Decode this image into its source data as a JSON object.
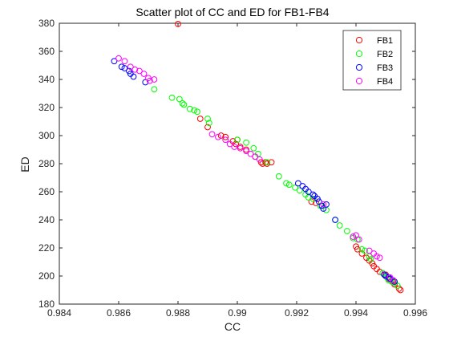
{
  "chart_data": {
    "type": "scatter",
    "title": "Scatter plot of CC and ED for FB1-FB4",
    "xlabel": "CC",
    "ylabel": "ED",
    "xlim": [
      0.984,
      0.996
    ],
    "ylim": [
      180,
      380
    ],
    "xticks": [
      0.984,
      0.986,
      0.988,
      0.99,
      0.992,
      0.994,
      0.996
    ],
    "xtick_labels": [
      "0.984",
      "0.986",
      "0.988",
      "0.99",
      "0.992",
      "0.994",
      "0.996"
    ],
    "yticks": [
      180,
      200,
      220,
      240,
      260,
      280,
      300,
      320,
      340,
      360,
      380
    ],
    "ytick_labels": [
      "180",
      "200",
      "220",
      "240",
      "260",
      "280",
      "300",
      "320",
      "340",
      "360",
      "380"
    ],
    "grid": false,
    "legend_position": "top-right",
    "series": [
      {
        "name": "FB1",
        "color": "#ff0000",
        "points": [
          [
            0.988,
            379.5
          ],
          [
            0.98875,
            312
          ],
          [
            0.989,
            306
          ],
          [
            0.98945,
            300
          ],
          [
            0.9896,
            299
          ],
          [
            0.98985,
            296
          ],
          [
            0.98995,
            294
          ],
          [
            0.99,
            297
          ],
          [
            0.9901,
            292
          ],
          [
            0.9903,
            290
          ],
          [
            0.9906,
            285
          ],
          [
            0.9908,
            281
          ],
          [
            0.99085,
            280
          ],
          [
            0.99095,
            281
          ],
          [
            0.991,
            280
          ],
          [
            0.99115,
            281
          ],
          [
            0.9925,
            253
          ],
          [
            0.99265,
            252
          ],
          [
            0.994,
            221
          ],
          [
            0.99405,
            219
          ],
          [
            0.9942,
            216
          ],
          [
            0.99435,
            213
          ],
          [
            0.99445,
            211
          ],
          [
            0.99455,
            209
          ],
          [
            0.9946,
            207
          ],
          [
            0.9947,
            205
          ],
          [
            0.9948,
            203
          ],
          [
            0.995,
            201
          ],
          [
            0.9951,
            198
          ],
          [
            0.99525,
            196
          ],
          [
            0.9953,
            194
          ],
          [
            0.99545,
            191
          ],
          [
            0.9955,
            190
          ]
        ]
      },
      {
        "name": "FB2",
        "color": "#00ff00",
        "points": [
          [
            0.9872,
            333
          ],
          [
            0.9878,
            327
          ],
          [
            0.98805,
            326
          ],
          [
            0.98815,
            323
          ],
          [
            0.9882,
            322
          ],
          [
            0.9884,
            319
          ],
          [
            0.98855,
            318
          ],
          [
            0.98865,
            317
          ],
          [
            0.989,
            312
          ],
          [
            0.98905,
            309
          ],
          [
            0.99,
            297
          ],
          [
            0.9903,
            295
          ],
          [
            0.99055,
            291
          ],
          [
            0.9907,
            287
          ],
          [
            0.991,
            281
          ],
          [
            0.9914,
            271
          ],
          [
            0.99165,
            266
          ],
          [
            0.99175,
            265
          ],
          [
            0.99195,
            263
          ],
          [
            0.9921,
            261
          ],
          [
            0.9923,
            258
          ],
          [
            0.9924,
            256
          ],
          [
            0.99255,
            255
          ],
          [
            0.9928,
            250
          ],
          [
            0.993,
            247
          ],
          [
            0.9933,
            240
          ],
          [
            0.99345,
            236
          ],
          [
            0.9937,
            232
          ],
          [
            0.9939,
            227
          ],
          [
            0.99405,
            226
          ],
          [
            0.9942,
            219
          ],
          [
            0.9943,
            218
          ],
          [
            0.99445,
            214
          ],
          [
            0.9945,
            212
          ],
          [
            0.9949,
            202
          ],
          [
            0.99505,
            199
          ],
          [
            0.9951,
            197
          ],
          [
            0.9952,
            196
          ],
          [
            0.9953,
            195
          ],
          [
            0.9954,
            193
          ]
        ]
      },
      {
        "name": "FB3",
        "color": "#0000ff",
        "points": [
          [
            0.98585,
            353
          ],
          [
            0.9861,
            349
          ],
          [
            0.9862,
            348
          ],
          [
            0.98635,
            346
          ],
          [
            0.9864,
            344
          ],
          [
            0.9865,
            342
          ],
          [
            0.9869,
            338
          ],
          [
            0.99205,
            266
          ],
          [
            0.9922,
            264
          ],
          [
            0.9923,
            262
          ],
          [
            0.9924,
            260
          ],
          [
            0.99255,
            258
          ],
          [
            0.9926,
            257
          ],
          [
            0.9927,
            255
          ],
          [
            0.99275,
            253
          ],
          [
            0.99285,
            250
          ],
          [
            0.9929,
            248
          ],
          [
            0.993,
            251
          ],
          [
            0.9933,
            240
          ],
          [
            0.99495,
            201
          ],
          [
            0.995,
            200
          ],
          [
            0.9951,
            199
          ],
          [
            0.99515,
            198
          ],
          [
            0.99525,
            197
          ],
          [
            0.9953,
            196
          ]
        ]
      },
      {
        "name": "FB4",
        "color": "#ff00ff",
        "points": [
          [
            0.986,
            355
          ],
          [
            0.9862,
            353
          ],
          [
            0.9864,
            349
          ],
          [
            0.98655,
            347
          ],
          [
            0.9867,
            346
          ],
          [
            0.98685,
            344
          ],
          [
            0.987,
            341
          ],
          [
            0.98705,
            339
          ],
          [
            0.9872,
            340
          ],
          [
            0.98915,
            301
          ],
          [
            0.98935,
            299
          ],
          [
            0.9896,
            297
          ],
          [
            0.98975,
            294
          ],
          [
            0.9899,
            292
          ],
          [
            0.9901,
            291
          ],
          [
            0.9903,
            289
          ],
          [
            0.99045,
            287
          ],
          [
            0.9906,
            285
          ],
          [
            0.99075,
            283
          ],
          [
            0.9929,
            251
          ],
          [
            0.9939,
            228
          ],
          [
            0.994,
            229
          ],
          [
            0.9941,
            226
          ],
          [
            0.99445,
            218
          ],
          [
            0.9946,
            216
          ],
          [
            0.9947,
            214
          ],
          [
            0.9948,
            213
          ],
          [
            0.99515,
            199
          ],
          [
            0.99525,
            197
          ]
        ]
      }
    ]
  }
}
